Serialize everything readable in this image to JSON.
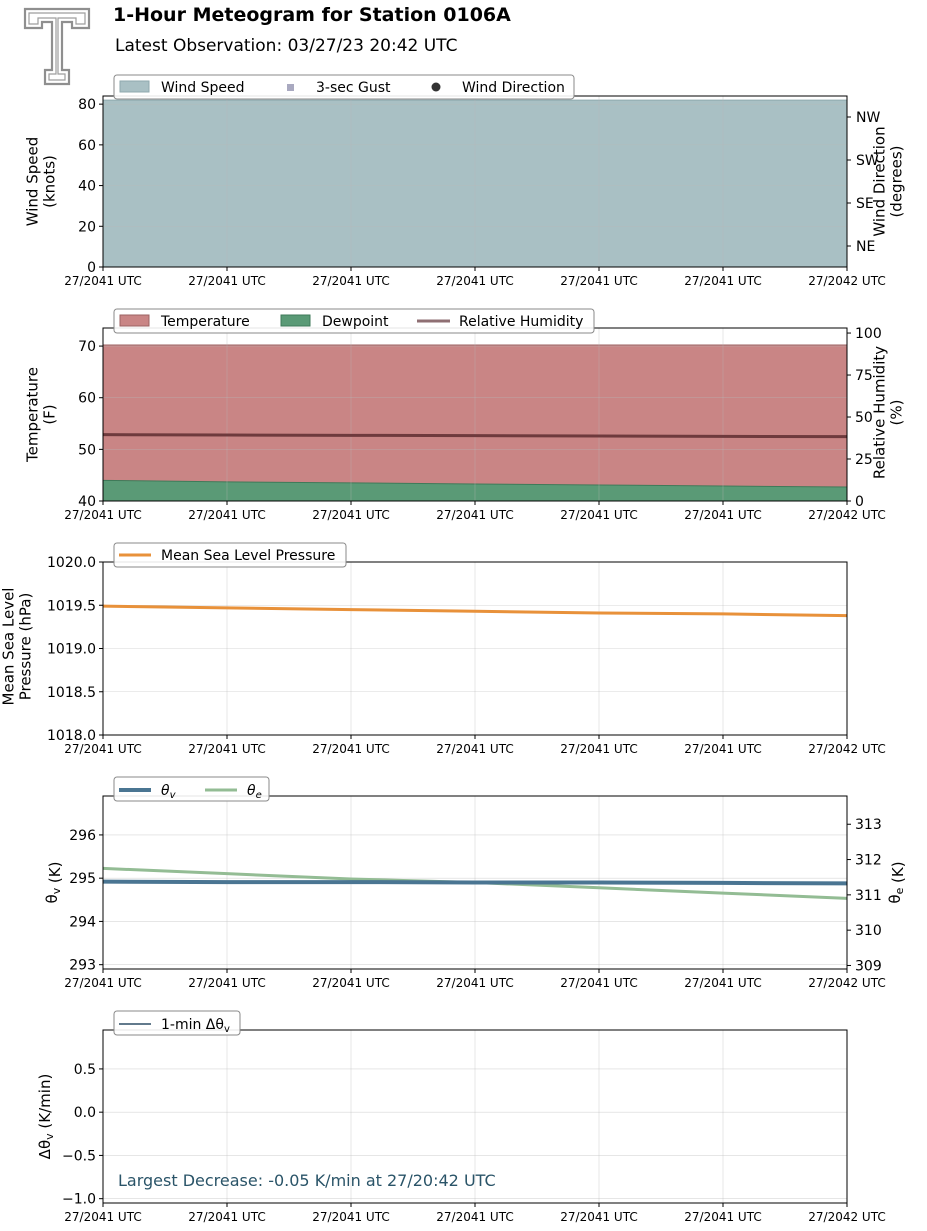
{
  "header": {
    "title": "1-Hour Meteogram for Station 0106A",
    "subtitle": "Latest Observation: 03/27/23 20:42 UTC"
  },
  "colors": {
    "wind_speed": "#a9c0c4",
    "gust": "#a9a9c0",
    "direction": "#333333",
    "temperature": "#c98585",
    "dewpoint": "#5a9a76",
    "rh": "#6e3a3d",
    "pressure": "#e8913a",
    "theta_v": "#4a7592",
    "theta_e": "#93bc94",
    "dtheta": "#2f4f66",
    "annotation": "#2a5468"
  },
  "chart_data": [
    {
      "id": "wind",
      "type": "area",
      "x": [
        "27/2041 UTC",
        "27/2041 UTC",
        "27/2041 UTC",
        "27/2041 UTC",
        "27/2041 UTC",
        "27/2041 UTC",
        "27/2042 UTC"
      ],
      "ylabel": "Wind Speed\n(knots)",
      "ylim": [
        0,
        84
      ],
      "yticks": [
        0,
        20,
        40,
        60,
        80
      ],
      "y2label": "Wind Direction\n(degrees)",
      "y2ticks": [
        "NE",
        "SE",
        "SW",
        "NW"
      ],
      "legend": [
        "Wind Speed",
        "3-sec Gust",
        "Wind Direction"
      ],
      "series": [
        {
          "name": "Wind Speed",
          "values": [
            82,
            82,
            82,
            82,
            82,
            82,
            82
          ]
        }
      ],
      "grid": true,
      "legend_placement": "top-left"
    },
    {
      "id": "temp",
      "type": "area",
      "x": [
        "27/2041 UTC",
        "27/2041 UTC",
        "27/2041 UTC",
        "27/2041 UTC",
        "27/2041 UTC",
        "27/2041 UTC",
        "27/2042 UTC"
      ],
      "ylabel": "Temperature\n(F)",
      "ylim": [
        40,
        73.5
      ],
      "yticks": [
        40,
        50,
        60,
        70
      ],
      "y2label": "Relative Humidity\n(%)",
      "y2lim": [
        0,
        103
      ],
      "y2ticks": [
        0,
        25,
        50,
        75,
        100
      ],
      "legend": [
        "Temperature",
        "Dewpoint",
        "Relative Humidity"
      ],
      "series": [
        {
          "name": "Temperature",
          "values": [
            70.2,
            70.2,
            70.2,
            70.2,
            70.2,
            70.2,
            70.2
          ]
        },
        {
          "name": "Dewpoint",
          "values": [
            44.0,
            43.7,
            43.5,
            43.3,
            43.1,
            42.9,
            42.7
          ]
        },
        {
          "name": "Relative Humidity",
          "values": [
            39.5,
            39.3,
            39.1,
            38.9,
            38.7,
            38.5,
            38.3
          ]
        }
      ],
      "grid": true,
      "legend_placement": "top-left"
    },
    {
      "id": "pressure",
      "type": "line",
      "x": [
        "27/2041 UTC",
        "27/2041 UTC",
        "27/2041 UTC",
        "27/2041 UTC",
        "27/2041 UTC",
        "27/2041 UTC",
        "27/2042 UTC"
      ],
      "ylabel": "Mean Sea Level\nPressure (hPa)",
      "ylim": [
        1018.0,
        1020.0
      ],
      "yticks": [
        "1018.0",
        "1018.5",
        "1019.0",
        "1019.5",
        "1020.0"
      ],
      "legend": [
        "Mean Sea Level Pressure"
      ],
      "series": [
        {
          "name": "Mean Sea Level Pressure",
          "values": [
            1019.49,
            1019.47,
            1019.45,
            1019.43,
            1019.41,
            1019.4,
            1019.38
          ]
        }
      ],
      "grid": true,
      "legend_placement": "top-left"
    },
    {
      "id": "theta",
      "type": "line",
      "x": [
        "27/2041 UTC",
        "27/2041 UTC",
        "27/2041 UTC",
        "27/2041 UTC",
        "27/2041 UTC",
        "27/2041 UTC",
        "27/2042 UTC"
      ],
      "ylabel": "θv (K)",
      "ylim": [
        292.9,
        296.9
      ],
      "yticks": [
        293,
        294,
        295,
        296
      ],
      "y2label": "θe (K)",
      "y2lim": [
        308.9,
        313.8
      ],
      "y2ticks": [
        309,
        310,
        311,
        312,
        313
      ],
      "legend": [
        "θv",
        "θe"
      ],
      "series": [
        {
          "name": "θv",
          "values": [
            294.92,
            294.91,
            294.91,
            294.9,
            294.9,
            294.89,
            294.88
          ]
        },
        {
          "name": "θe",
          "values": [
            311.75,
            311.6,
            311.45,
            311.35,
            311.2,
            311.05,
            310.9
          ]
        }
      ],
      "grid": true,
      "legend_placement": "top-left"
    },
    {
      "id": "dtheta",
      "type": "line",
      "x": [
        "27/2041 UTC",
        "27/2041 UTC",
        "27/2041 UTC",
        "27/2041 UTC",
        "27/2041 UTC",
        "27/2041 UTC",
        "27/2042 UTC"
      ],
      "ylabel": "Δθv (K/min)",
      "ylim": [
        -1.05,
        0.95
      ],
      "yticks": [
        "−1.0",
        "−0.5",
        "0.0",
        "0.5"
      ],
      "ytick_values": [
        -1.0,
        -0.5,
        0.0,
        0.5
      ],
      "legend": [
        "1-min Δθv"
      ],
      "series": [],
      "annotation": "Largest Decrease: -0.05 K/min at 27/20:42 UTC",
      "grid": true,
      "legend_placement": "top-left"
    }
  ]
}
